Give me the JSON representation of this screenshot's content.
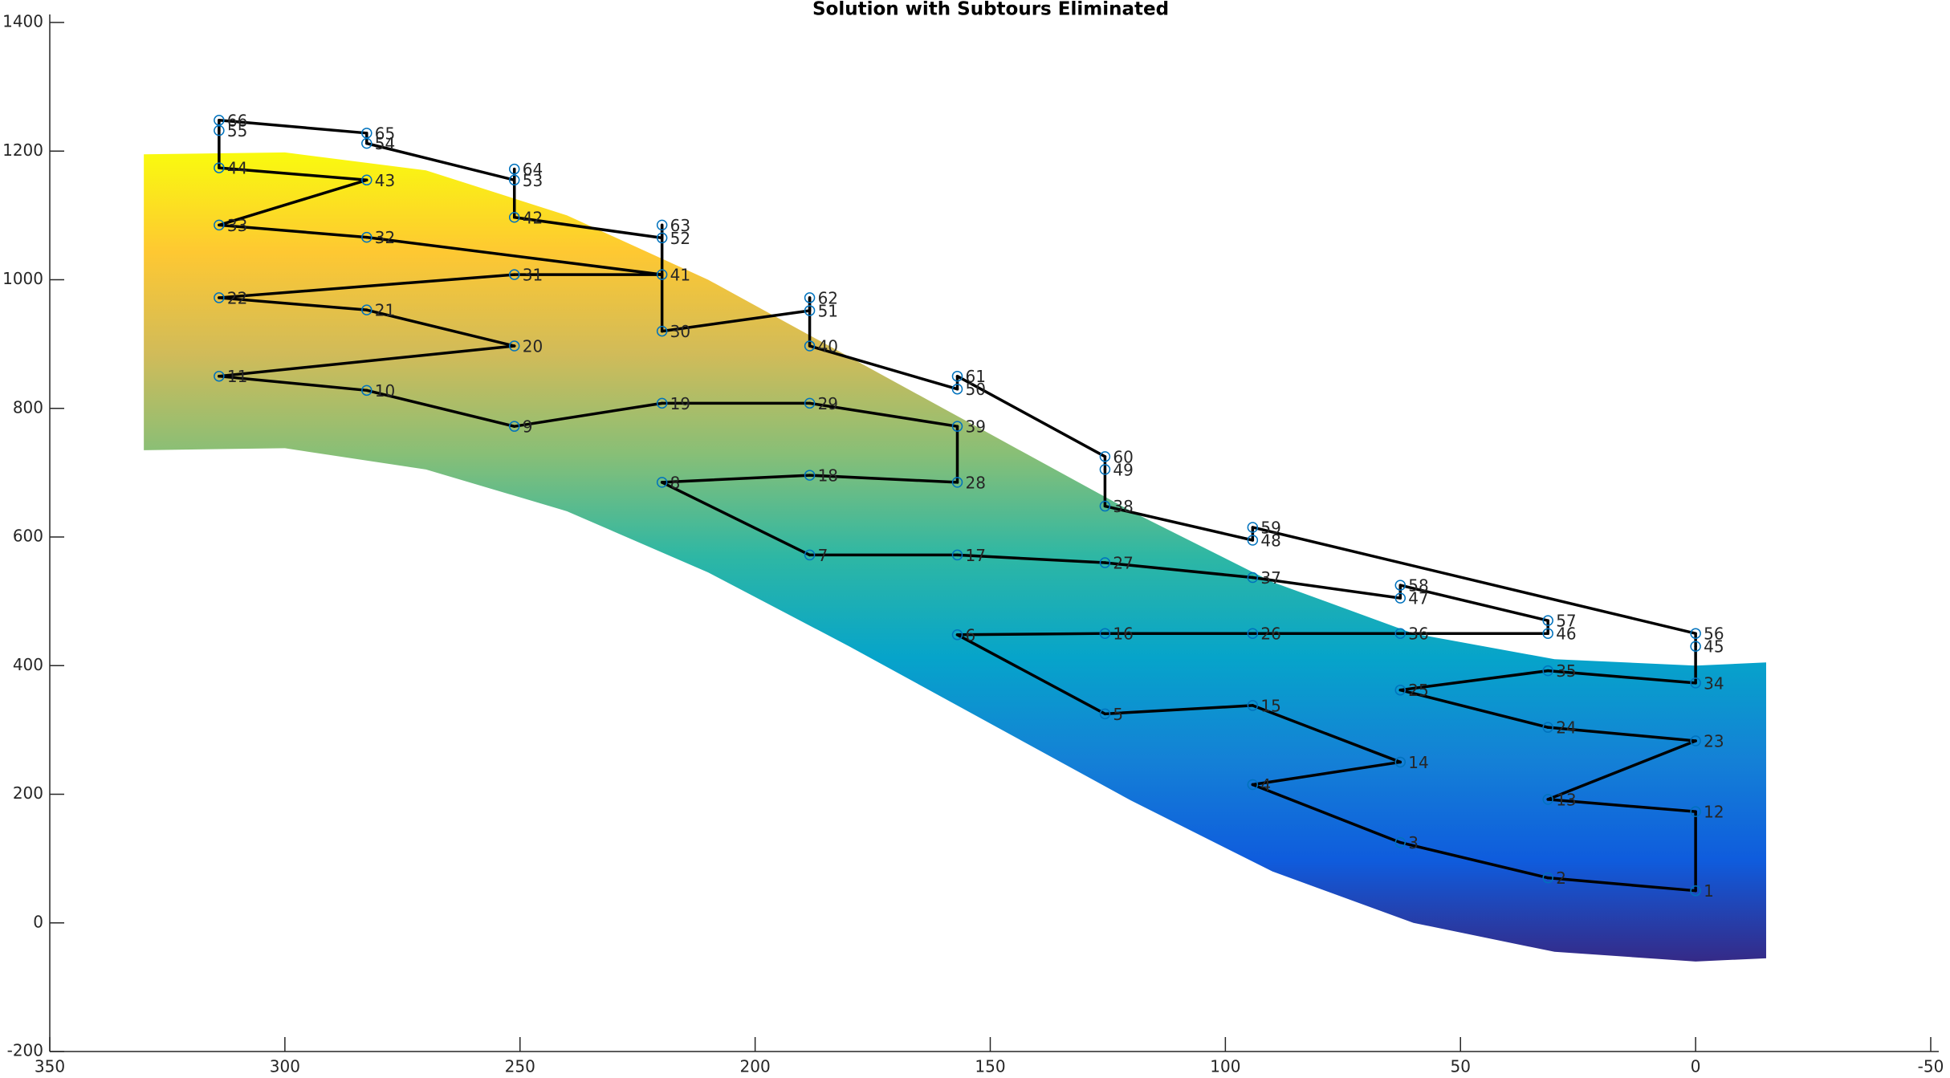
{
  "chart_data": {
    "type": "tour",
    "title": "Solution with Subtours Eliminated",
    "xlim": [
      350,
      -50
    ],
    "xticks": [
      350,
      300,
      250,
      200,
      150,
      100,
      50,
      0,
      -50
    ],
    "ylim": [
      -200,
      1400
    ],
    "yticks": [
      -200,
      0,
      200,
      400,
      600,
      800,
      1000,
      1200,
      1400
    ],
    "node_color": "#0072bd",
    "line_color": "#000000",
    "surface": {
      "x": [
        330,
        300,
        270,
        240,
        210,
        180,
        150,
        120,
        90,
        60,
        30,
        0,
        -15
      ],
      "upper": [
        1195,
        1198,
        1170,
        1100,
        1000,
        880,
        760,
        640,
        530,
        450,
        410,
        400,
        405
      ],
      "lower": [
        735,
        738,
        705,
        640,
        545,
        430,
        310,
        190,
        80,
        0,
        -45,
        -60,
        -55
      ],
      "clim": [
        -60,
        1200
      ],
      "colormap": [
        "#352a87",
        "#0f5cdd",
        "#1481d6",
        "#06a4ca",
        "#2eb7a4",
        "#87bf77",
        "#d1bb59",
        "#fec832",
        "#f9fb0e"
      ]
    },
    "nodes": [
      {
        "label": 1,
        "x": 0,
        "y": 50
      },
      {
        "label": 2,
        "x": 31.4,
        "y": 70
      },
      {
        "label": 3,
        "x": 62.8,
        "y": 125
      },
      {
        "label": 4,
        "x": 94.2,
        "y": 215
      },
      {
        "label": 5,
        "x": 125.6,
        "y": 325
      },
      {
        "label": 6,
        "x": 157,
        "y": 448
      },
      {
        "label": 7,
        "x": 188.4,
        "y": 572
      },
      {
        "label": 8,
        "x": 219.8,
        "y": 685
      },
      {
        "label": 9,
        "x": 251.2,
        "y": 772
      },
      {
        "label": 10,
        "x": 282.6,
        "y": 828
      },
      {
        "label": 11,
        "x": 314,
        "y": 850
      },
      {
        "label": 12,
        "x": 0,
        "y": 173
      },
      {
        "label": 13,
        "x": 31.4,
        "y": 192
      },
      {
        "label": 14,
        "x": 62.8,
        "y": 250
      },
      {
        "label": 15,
        "x": 94.2,
        "y": 338
      },
      {
        "label": 16,
        "x": 125.6,
        "y": 450
      },
      {
        "label": 17,
        "x": 157,
        "y": 572
      },
      {
        "label": 18,
        "x": 188.4,
        "y": 696
      },
      {
        "label": 19,
        "x": 219.8,
        "y": 808
      },
      {
        "label": 20,
        "x": 251.2,
        "y": 897
      },
      {
        "label": 21,
        "x": 282.6,
        "y": 953
      },
      {
        "label": 22,
        "x": 314,
        "y": 972
      },
      {
        "label": 23,
        "x": 0,
        "y": 283
      },
      {
        "label": 24,
        "x": 31.4,
        "y": 304
      },
      {
        "label": 25,
        "x": 62.8,
        "y": 362
      },
      {
        "label": 26,
        "x": 94.2,
        "y": 450
      },
      {
        "label": 27,
        "x": 125.6,
        "y": 560
      },
      {
        "label": 28,
        "x": 157,
        "y": 685
      },
      {
        "label": 29,
        "x": 188.4,
        "y": 808
      },
      {
        "label": 30,
        "x": 219.8,
        "y": 920
      },
      {
        "label": 31,
        "x": 251.2,
        "y": 1008
      },
      {
        "label": 32,
        "x": 282.6,
        "y": 1066
      },
      {
        "label": 33,
        "x": 314,
        "y": 1085
      },
      {
        "label": 34,
        "x": 0,
        "y": 373
      },
      {
        "label": 35,
        "x": 31.4,
        "y": 392
      },
      {
        "label": 36,
        "x": 62.8,
        "y": 450
      },
      {
        "label": 37,
        "x": 94.2,
        "y": 537
      },
      {
        "label": 38,
        "x": 125.6,
        "y": 648
      },
      {
        "label": 39,
        "x": 157,
        "y": 772
      },
      {
        "label": 40,
        "x": 188.4,
        "y": 897
      },
      {
        "label": 41,
        "x": 219.8,
        "y": 1008
      },
      {
        "label": 42,
        "x": 251.2,
        "y": 1097
      },
      {
        "label": 43,
        "x": 282.6,
        "y": 1155
      },
      {
        "label": 44,
        "x": 314,
        "y": 1174
      },
      {
        "label": 45,
        "x": 0,
        "y": 430
      },
      {
        "label": 46,
        "x": 31.4,
        "y": 450
      },
      {
        "label": 47,
        "x": 62.8,
        "y": 505
      },
      {
        "label": 48,
        "x": 94.2,
        "y": 595
      },
      {
        "label": 49,
        "x": 125.6,
        "y": 705
      },
      {
        "label": 50,
        "x": 157,
        "y": 830
      },
      {
        "label": 51,
        "x": 188.4,
        "y": 952
      },
      {
        "label": 52,
        "x": 219.8,
        "y": 1065
      },
      {
        "label": 53,
        "x": 251.2,
        "y": 1155
      },
      {
        "label": 54,
        "x": 282.6,
        "y": 1212
      },
      {
        "label": 55,
        "x": 314,
        "y": 1232
      },
      {
        "label": 56,
        "x": 0,
        "y": 450
      },
      {
        "label": 57,
        "x": 31.4,
        "y": 470
      },
      {
        "label": 58,
        "x": 62.8,
        "y": 525
      },
      {
        "label": 59,
        "x": 94.2,
        "y": 615
      },
      {
        "label": 60,
        "x": 125.6,
        "y": 725
      },
      {
        "label": 61,
        "x": 157,
        "y": 850
      },
      {
        "label": 62,
        "x": 188.4,
        "y": 972
      },
      {
        "label": 63,
        "x": 219.8,
        "y": 1085
      },
      {
        "label": 64,
        "x": 251.2,
        "y": 1172
      },
      {
        "label": 65,
        "x": 282.6,
        "y": 1228
      },
      {
        "label": 66,
        "x": 314,
        "y": 1248
      }
    ],
    "tour": [
      1,
      2,
      3,
      4,
      14,
      15,
      5,
      6,
      16,
      26,
      36,
      46,
      57,
      58,
      47,
      37,
      27,
      17,
      7,
      8,
      18,
      28,
      39,
      29,
      19,
      9,
      10,
      11,
      20,
      21,
      22,
      31,
      41,
      32,
      33,
      43,
      44,
      55,
      66,
      65,
      54,
      53,
      64,
      42,
      52,
      63,
      30,
      51,
      62,
      40,
      50,
      61,
      60,
      49,
      38,
      48,
      59,
      56,
      45,
      34,
      35,
      25,
      24,
      23,
      13,
      12,
      1
    ]
  }
}
